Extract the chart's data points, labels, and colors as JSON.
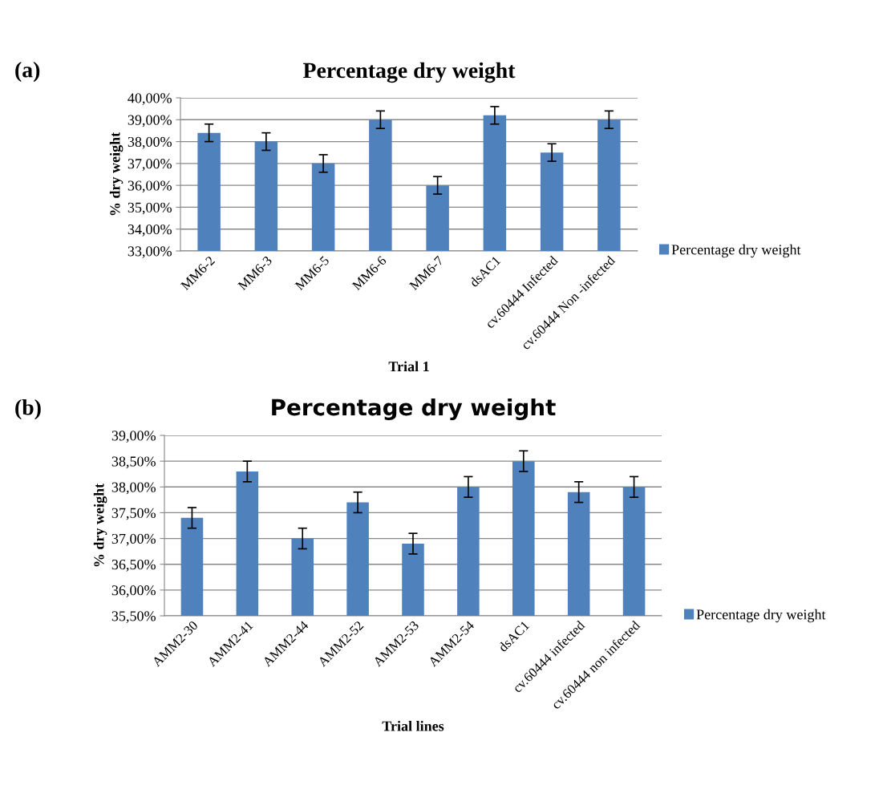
{
  "chart_data": [
    {
      "type": "bar",
      "title": "Percentage dry weight",
      "xlabel": "Trial 1",
      "ylabel": "% dry weight",
      "annotations": [
        "(a)"
      ],
      "categories": [
        "MM6-2",
        "MM6-3",
        "MM6-5",
        "MM6-6",
        "MM6-7",
        "dsAC1",
        "cv.60444 Infected",
        "cv.60444 Non -infected"
      ],
      "series": [
        {
          "name": "Percentage dry weight",
          "color": "#4f81bd",
          "values": [
            38.4,
            38.0,
            37.0,
            39.0,
            36.0,
            39.2,
            37.5,
            39.0
          ],
          "errors": [
            0.4,
            0.4,
            0.4,
            0.4,
            0.4,
            0.4,
            0.4,
            0.4
          ]
        }
      ],
      "ylim": [
        33,
        40
      ],
      "yticks": [
        {
          "value": 33,
          "label": "33,00%"
        },
        {
          "value": 34,
          "label": "34,00%"
        },
        {
          "value": 35,
          "label": "35,00%"
        },
        {
          "value": 36,
          "label": "36,00%"
        },
        {
          "value": 37,
          "label": "37,00%"
        },
        {
          "value": 38,
          "label": "38,00%"
        },
        {
          "value": 39,
          "label": "39,00%"
        },
        {
          "value": 40,
          "label": "40,00%"
        }
      ],
      "grid": "y",
      "legend": "right"
    },
    {
      "type": "bar",
      "title": "Percentage dry weight",
      "xlabel": "Trial lines",
      "ylabel": "% dry weight",
      "annotations": [
        "(b)"
      ],
      "categories": [
        "AMM2-30",
        "AMM2-41",
        "AMM2-44",
        "AMM2-52",
        "AMM2-53",
        "AMM2-54",
        "dsAC1",
        "cv.60444 infected",
        "cv.60444 non infected"
      ],
      "series": [
        {
          "name": "Percentage dry weight",
          "color": "#4f81bd",
          "values": [
            37.4,
            38.3,
            37.0,
            37.7,
            36.9,
            38.0,
            38.5,
            37.9,
            38.0
          ],
          "errors": [
            0.2,
            0.2,
            0.2,
            0.2,
            0.2,
            0.2,
            0.2,
            0.2,
            0.2
          ]
        }
      ],
      "ylim": [
        35.5,
        39
      ],
      "yticks": [
        {
          "value": 35.5,
          "label": "35,50%"
        },
        {
          "value": 36,
          "label": "36,00%"
        },
        {
          "value": 36.5,
          "label": "36,50%"
        },
        {
          "value": 37,
          "label": "37,00%"
        },
        {
          "value": 37.5,
          "label": "37,50%"
        },
        {
          "value": 38,
          "label": "38,00%"
        },
        {
          "value": 38.5,
          "label": "38,50%"
        },
        {
          "value": 39,
          "label": "39,00%"
        }
      ],
      "grid": "y",
      "legend": "right"
    }
  ]
}
